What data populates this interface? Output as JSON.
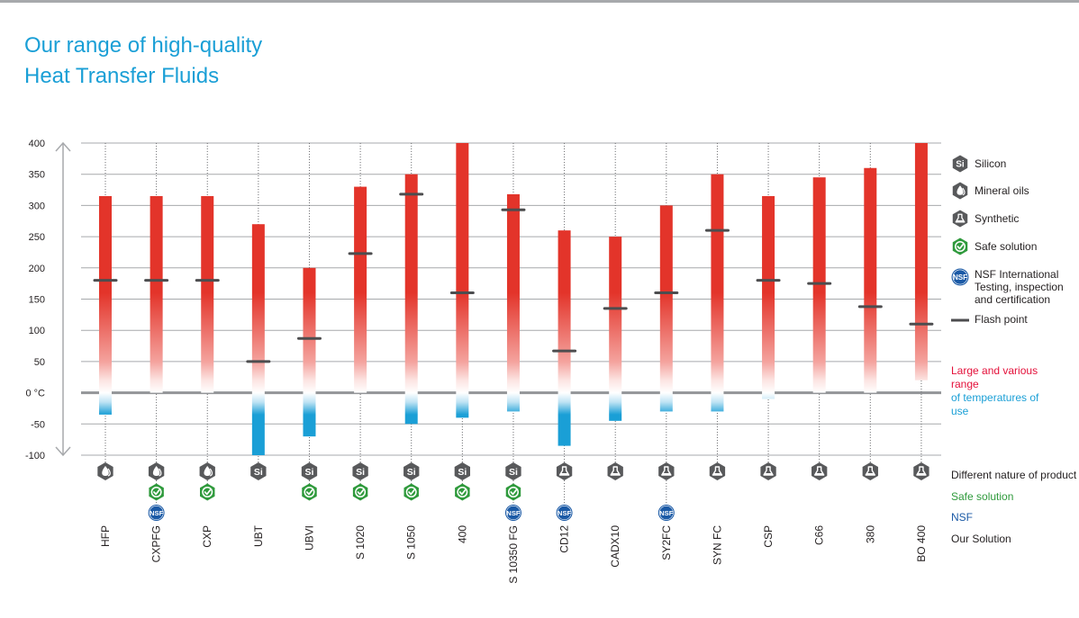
{
  "title": [
    "Our range of high-quality",
    "Heat Transfer Fluids"
  ],
  "colors": {
    "title": "#1a9fd6",
    "bar_red": "#e3342a",
    "bar_pink": "#f4a29d",
    "bar_blue": "#1a9fd6",
    "flash": "#4d4d4f",
    "icon_gray": "#58595b",
    "safe_green": "#2f9a3c",
    "nsf_blue": "#1b5aa6",
    "grid": "#a7a9ac",
    "zero_line": "#939598"
  },
  "legend": [
    {
      "icon": "silicon-icon",
      "label": "Silicon"
    },
    {
      "icon": "mineral-oil-icon",
      "label": "Mineral oils"
    },
    {
      "icon": "synthetic-icon",
      "label": "Synthetic"
    },
    {
      "icon": "safe-solution-icon",
      "label": "Safe solution"
    },
    {
      "icon": "nsf-icon",
      "label": "NSF International Testing, inspection and certification"
    },
    {
      "icon": "flash-point-icon",
      "label": "Flash point"
    }
  ],
  "range_note": {
    "red": "Large and various range",
    "blue": "of temperatures of use"
  },
  "row_labels": {
    "nature": "Different nature of product",
    "safe": "Safe solution",
    "nsf": "NSF",
    "solution": "Our Solution"
  },
  "chart_data": {
    "type": "bar",
    "ylabel": "°C",
    "ylim": [
      -100,
      400
    ],
    "yticks": [
      "400",
      "350",
      "300",
      "250",
      "200",
      "150",
      "100",
      "50",
      "0 °C",
      "-50",
      "-100"
    ],
    "grid": true,
    "categories": [
      "HFP",
      "CXPFG",
      "CXP",
      "UBT",
      "UBVI",
      "S 1020",
      "S 1050",
      "400",
      "S 10350 FG",
      "CD12",
      "CADX10",
      "SY2FC",
      "SYN FC",
      "CSP",
      "C66",
      "380",
      "BO 400"
    ],
    "min_temp": [
      -35,
      0,
      0,
      -100,
      -70,
      0,
      -50,
      -40,
      -30,
      -85,
      -45,
      -30,
      -30,
      -10,
      0,
      0,
      20
    ],
    "max_temp": [
      315,
      315,
      315,
      270,
      200,
      330,
      350,
      400,
      318,
      260,
      250,
      300,
      350,
      315,
      345,
      360,
      400
    ],
    "flash_point": [
      180,
      180,
      180,
      50,
      87,
      223,
      318,
      160,
      293,
      67,
      135,
      160,
      260,
      180,
      175,
      138,
      110
    ],
    "nature": [
      "mineral",
      "mineral",
      "mineral",
      "silicon",
      "silicon",
      "silicon",
      "silicon",
      "silicon",
      "silicon",
      "synthetic",
      "synthetic",
      "synthetic",
      "synthetic",
      "synthetic",
      "synthetic",
      "synthetic",
      "synthetic"
    ],
    "safe": [
      false,
      true,
      true,
      false,
      true,
      true,
      true,
      true,
      true,
      false,
      false,
      false,
      false,
      false,
      false,
      false,
      false
    ],
    "nsf": [
      false,
      true,
      false,
      false,
      false,
      false,
      false,
      false,
      true,
      true,
      false,
      true,
      false,
      false,
      false,
      false,
      false
    ]
  }
}
